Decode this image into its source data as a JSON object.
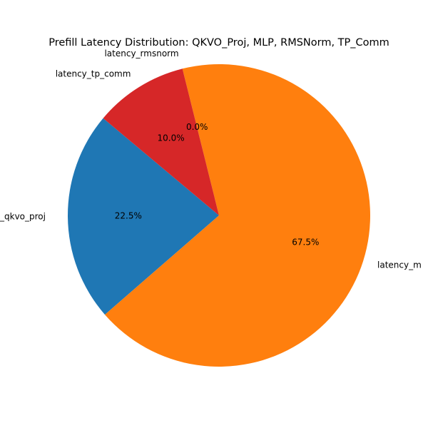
{
  "chart_data": {
    "type": "pie",
    "title": "Prefill Latency Distribution: QKVO_Proj, MLP, RMSNorm, TP_Comm",
    "slices": [
      {
        "name": "latency_qkvo_proj",
        "label_shown": "_qkvo_proj",
        "value": 22.5,
        "pct_label": "22.5%",
        "color": "#1f77b4"
      },
      {
        "name": "latency_mlp",
        "label_shown": "latency_m",
        "value": 67.5,
        "pct_label": "67.5%",
        "color": "#ff7f0e"
      },
      {
        "name": "latency_rmsnorm",
        "label_shown": "latency_rmsnorm",
        "value": 0.0,
        "pct_label": "0.0%",
        "color": "#2ca02c"
      },
      {
        "name": "latency_tp_comm",
        "label_shown": "latency_tp_comm",
        "value": 10.0,
        "pct_label": "10.0%",
        "color": "#d62728"
      }
    ],
    "start_angle_deg": 140,
    "direction": "counterclockwise",
    "legend": "none"
  }
}
